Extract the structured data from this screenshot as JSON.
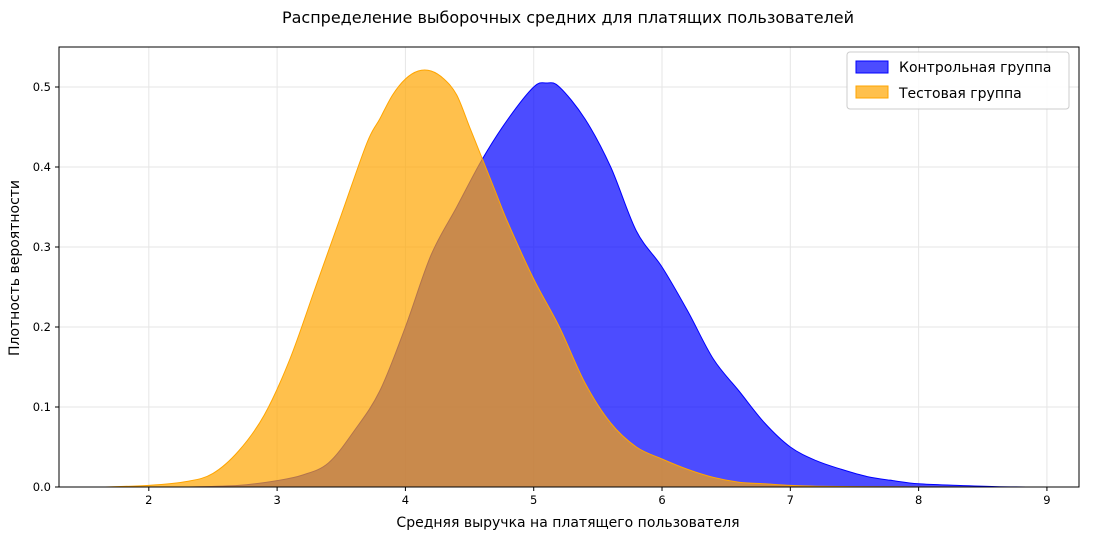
{
  "chart_data": {
    "type": "area",
    "title": "Распределение выборочных средних для платящих пользователей",
    "xlabel": "Средняя выручка на платящего пользователя",
    "ylabel": "Плотность вероятности",
    "xlim": [
      1.3,
      9.25
    ],
    "ylim": [
      0.0,
      0.55
    ],
    "x_ticks": [
      2,
      3,
      4,
      5,
      6,
      7,
      8,
      9
    ],
    "y_ticks": [
      0.0,
      0.1,
      0.2,
      0.3,
      0.4,
      0.5
    ],
    "x_tick_labels": [
      "2",
      "3",
      "4",
      "5",
      "6",
      "7",
      "8",
      "9"
    ],
    "y_tick_labels": [
      "0.0",
      "0.1",
      "0.2",
      "0.3",
      "0.4",
      "0.5"
    ],
    "grid": true,
    "legend_position": "top-right",
    "series": [
      {
        "name": "Контрольная группа",
        "color": "#0000ff",
        "x": [
          2.3,
          2.7,
          3.0,
          3.2,
          3.4,
          3.6,
          3.8,
          4.0,
          4.2,
          4.4,
          4.6,
          4.8,
          5.0,
          5.1,
          5.2,
          5.4,
          5.6,
          5.8,
          6.0,
          6.2,
          6.4,
          6.6,
          6.8,
          7.0,
          7.2,
          7.4,
          7.6,
          7.8,
          8.0,
          8.3,
          8.6,
          8.9
        ],
        "y": [
          0.0,
          0.002,
          0.008,
          0.015,
          0.03,
          0.07,
          0.12,
          0.2,
          0.29,
          0.35,
          0.41,
          0.46,
          0.5,
          0.505,
          0.5,
          0.46,
          0.4,
          0.32,
          0.275,
          0.22,
          0.16,
          0.12,
          0.08,
          0.05,
          0.033,
          0.022,
          0.013,
          0.008,
          0.004,
          0.002,
          0.0005,
          0.0
        ]
      },
      {
        "name": "Тестовая группа",
        "color": "#ffa500",
        "x": [
          1.65,
          2.0,
          2.3,
          2.5,
          2.7,
          2.9,
          3.1,
          3.3,
          3.5,
          3.7,
          3.8,
          3.9,
          4.0,
          4.1,
          4.2,
          4.3,
          4.4,
          4.5,
          4.6,
          4.7,
          4.8,
          5.0,
          5.2,
          5.4,
          5.6,
          5.8,
          6.0,
          6.2,
          6.4,
          6.6,
          6.8,
          7.0,
          7.2,
          7.5,
          8.0,
          8.5
        ],
        "y": [
          0.0,
          0.002,
          0.007,
          0.017,
          0.045,
          0.09,
          0.16,
          0.25,
          0.34,
          0.43,
          0.46,
          0.49,
          0.51,
          0.52,
          0.52,
          0.51,
          0.49,
          0.45,
          0.41,
          0.37,
          0.33,
          0.26,
          0.2,
          0.13,
          0.08,
          0.05,
          0.035,
          0.022,
          0.012,
          0.006,
          0.004,
          0.002,
          0.001,
          0.0005,
          0.0002,
          0.0
        ]
      }
    ]
  }
}
